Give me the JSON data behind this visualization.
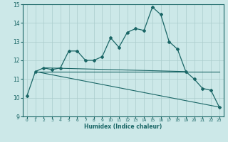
{
  "xlabel": "Humidex (Indice chaleur)",
  "bg_color": "#cce8e8",
  "grid_color": "#aacccc",
  "line_color": "#1a6666",
  "xlim": [
    -0.5,
    23.5
  ],
  "ylim": [
    9,
    15
  ],
  "xticks": [
    0,
    1,
    2,
    3,
    4,
    5,
    6,
    7,
    8,
    9,
    10,
    11,
    12,
    13,
    14,
    15,
    16,
    17,
    18,
    19,
    20,
    21,
    22,
    23
  ],
  "yticks": [
    9,
    10,
    11,
    12,
    13,
    14,
    15
  ],
  "main_series": {
    "x": [
      0,
      1,
      2,
      3,
      4,
      5,
      6,
      7,
      8,
      9,
      10,
      11,
      12,
      13,
      14,
      15,
      16,
      17,
      18,
      19,
      20,
      21,
      22,
      23
    ],
    "y": [
      10.1,
      11.4,
      11.6,
      11.5,
      11.6,
      12.5,
      12.5,
      12.0,
      12.0,
      12.2,
      13.2,
      12.7,
      13.5,
      13.7,
      13.6,
      14.85,
      14.45,
      13.0,
      12.6,
      11.4,
      11.0,
      10.5,
      10.4,
      9.5
    ]
  },
  "line1": {
    "x": [
      1,
      23
    ],
    "y": [
      11.4,
      11.4
    ]
  },
  "line2": {
    "x": [
      2,
      19
    ],
    "y": [
      11.6,
      11.4
    ]
  },
  "line3": {
    "x": [
      1,
      23
    ],
    "y": [
      11.4,
      9.5
    ]
  }
}
